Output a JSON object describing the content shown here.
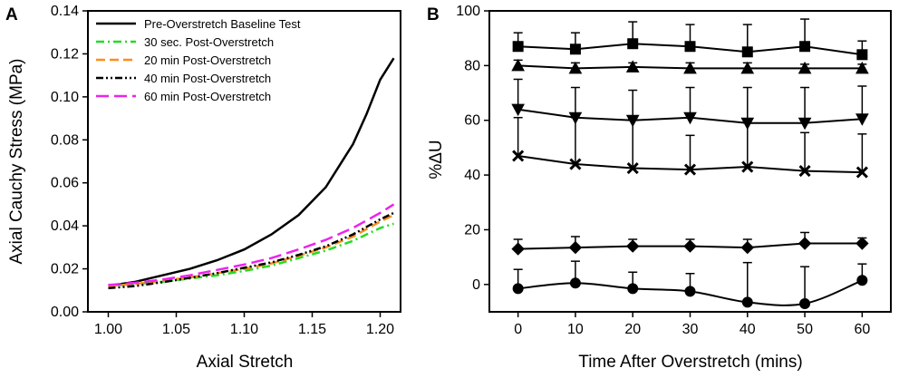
{
  "chart_data": [
    {
      "panel": "A",
      "type": "line",
      "xlabel": "Axial Stretch",
      "ylabel": "Axial Cauchy Stress (MPa)",
      "xlim": [
        0.985,
        1.215
      ],
      "ylim": [
        0,
        0.14
      ],
      "xticks": [
        1.0,
        1.05,
        1.1,
        1.15,
        1.2
      ],
      "xtick_labels": [
        "1.00",
        "1.05",
        "1.10",
        "1.15",
        "1.20"
      ],
      "yticks": [
        0,
        0.02,
        0.04,
        0.06,
        0.08,
        0.1,
        0.12,
        0.14
      ],
      "ytick_labels": [
        "0.00",
        "0.02",
        "0.04",
        "0.06",
        "0.08",
        "0.10",
        "0.12",
        "0.14"
      ],
      "legend_position": "top-left",
      "series": [
        {
          "name": "Pre-Overstretch Baseline Test",
          "color": "#000000",
          "dash": "solid",
          "x": [
            1.0,
            1.02,
            1.04,
            1.06,
            1.08,
            1.1,
            1.12,
            1.14,
            1.16,
            1.18,
            1.19,
            1.2,
            1.21
          ],
          "y": [
            0.012,
            0.014,
            0.017,
            0.02,
            0.024,
            0.029,
            0.036,
            0.045,
            0.058,
            0.078,
            0.092,
            0.108,
            0.118
          ]
        },
        {
          "name": "30 sec. Post-Overstretch",
          "color": "#22dd22",
          "dash": "dashdot",
          "x": [
            1.0,
            1.02,
            1.04,
            1.06,
            1.08,
            1.1,
            1.12,
            1.14,
            1.16,
            1.18,
            1.2,
            1.21
          ],
          "y": [
            0.012,
            0.013,
            0.014,
            0.0155,
            0.017,
            0.019,
            0.0215,
            0.025,
            0.0285,
            0.033,
            0.039,
            0.041
          ]
        },
        {
          "name": "20 min Post-Overstretch",
          "color": "#ff8c1a",
          "dash": "dash",
          "x": [
            1.0,
            1.02,
            1.04,
            1.06,
            1.08,
            1.1,
            1.12,
            1.14,
            1.16,
            1.18,
            1.2,
            1.21
          ],
          "y": [
            0.012,
            0.013,
            0.0145,
            0.016,
            0.018,
            0.02,
            0.0225,
            0.026,
            0.03,
            0.035,
            0.042,
            0.045
          ]
        },
        {
          "name": "40 min Post-Overstretch",
          "color": "#000000",
          "dash": "dashdotdot",
          "x": [
            1.0,
            1.02,
            1.04,
            1.06,
            1.08,
            1.1,
            1.12,
            1.14,
            1.16,
            1.18,
            1.2,
            1.21
          ],
          "y": [
            0.011,
            0.012,
            0.0138,
            0.0158,
            0.018,
            0.0205,
            0.023,
            0.0265,
            0.0305,
            0.036,
            0.043,
            0.046
          ]
        },
        {
          "name": "60 min Post-Overstretch",
          "color": "#ee22ee",
          "dash": "longdash",
          "x": [
            1.0,
            1.02,
            1.04,
            1.06,
            1.08,
            1.1,
            1.12,
            1.14,
            1.16,
            1.18,
            1.2,
            1.21
          ],
          "y": [
            0.0125,
            0.0135,
            0.015,
            0.017,
            0.0195,
            0.022,
            0.025,
            0.029,
            0.0335,
            0.039,
            0.046,
            0.05
          ]
        }
      ]
    },
    {
      "panel": "B",
      "type": "line",
      "xlabel": "Time After Overstretch (mins)",
      "ylabel": "%ΔU",
      "xlim": [
        -5,
        65
      ],
      "ylim": [
        -10,
        100
      ],
      "xticks": [
        0,
        10,
        20,
        30,
        40,
        50,
        60
      ],
      "xtick_labels": [
        "0",
        "10",
        "20",
        "30",
        "40",
        "50",
        "60"
      ],
      "yticks": [
        0,
        20,
        40,
        60,
        80,
        100
      ],
      "ytick_labels": [
        "0",
        "20",
        "40",
        "60",
        "80",
        "100"
      ],
      "series": [
        {
          "name": "square",
          "marker": "square",
          "x": [
            0,
            10,
            20,
            30,
            40,
            50,
            60
          ],
          "y": [
            87,
            86,
            88,
            87,
            85,
            87,
            84
          ],
          "err": [
            5,
            6,
            8,
            8,
            10,
            10,
            5
          ]
        },
        {
          "name": "triangle-up",
          "marker": "triangle-up",
          "x": [
            0,
            10,
            20,
            30,
            40,
            50,
            60
          ],
          "y": [
            80,
            79,
            79.5,
            79,
            79,
            79,
            79
          ],
          "err": [
            2,
            2,
            1.5,
            2,
            2,
            1.5,
            1.5
          ]
        },
        {
          "name": "triangle-down",
          "marker": "triangle-down",
          "x": [
            0,
            10,
            20,
            30,
            40,
            50,
            60
          ],
          "y": [
            64,
            61,
            60,
            61,
            59,
            59,
            60.5
          ],
          "err": [
            11,
            11,
            11,
            11,
            13,
            13,
            12
          ]
        },
        {
          "name": "x-cross",
          "marker": "x",
          "x": [
            0,
            10,
            20,
            30,
            40,
            50,
            60
          ],
          "y": [
            47,
            44,
            42.5,
            42,
            43,
            41.5,
            41
          ],
          "err": [
            14,
            17,
            18,
            12.5,
            16,
            14,
            14
          ]
        },
        {
          "name": "diamond",
          "marker": "diamond",
          "x": [
            0,
            10,
            20,
            30,
            40,
            50,
            60
          ],
          "y": [
            13,
            13.5,
            14,
            14,
            13.5,
            15,
            15
          ],
          "err": [
            3.5,
            4,
            2.5,
            2.5,
            3,
            4,
            2
          ]
        },
        {
          "name": "circle",
          "marker": "circle",
          "x": [
            0,
            10,
            20,
            30,
            40,
            50,
            60
          ],
          "y": [
            -1.5,
            0.5,
            -1.5,
            -2.5,
            -6.5,
            -7,
            1.5
          ],
          "err": [
            7,
            8,
            6,
            6.5,
            14.5,
            13.5,
            6
          ]
        }
      ]
    }
  ]
}
